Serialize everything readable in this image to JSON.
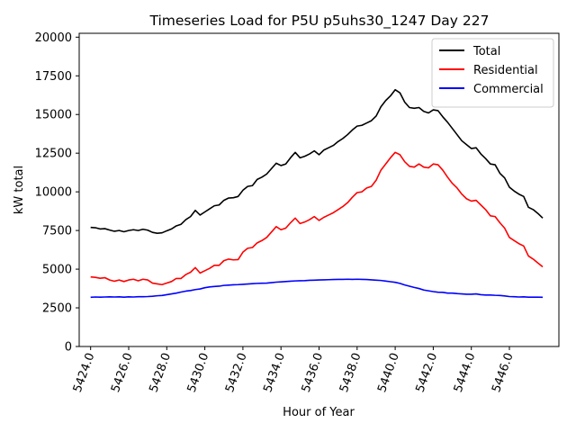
{
  "chart_data": {
    "type": "line",
    "title": "Timeseries Load for P5U p5uhs30_1247  Day 227",
    "xlabel": "Hour of Year",
    "ylabel": "kW total",
    "xlim": [
      5423.4,
      5448.6
    ],
    "ylim": [
      0,
      20250
    ],
    "x_ticks": [
      5424,
      5426,
      5428,
      5430,
      5432,
      5434,
      5436,
      5438,
      5440,
      5442,
      5444,
      5446
    ],
    "x_tick_labels": [
      "5424.0",
      "5426.0",
      "5428.0",
      "5430.0",
      "5432.0",
      "5434.0",
      "5436.0",
      "5438.0",
      "5440.0",
      "5442.0",
      "5444.0",
      "5446.0"
    ],
    "y_ticks": [
      0,
      2500,
      5000,
      7500,
      10000,
      12500,
      15000,
      17500,
      20000
    ],
    "y_tick_labels": [
      "0",
      "2500",
      "5000",
      "7500",
      "10000",
      "12500",
      "15000",
      "17500",
      "20000"
    ],
    "legend_position": "top-right",
    "x_start": 5424.0,
    "x_step": 0.25,
    "series": [
      {
        "name": "Total",
        "color": "#000000",
        "values": [
          7700,
          7680,
          7600,
          7620,
          7530,
          7450,
          7500,
          7420,
          7500,
          7550,
          7500,
          7580,
          7520,
          7380,
          7320,
          7350,
          7480,
          7600,
          7800,
          7900,
          8200,
          8400,
          8800,
          8500,
          8700,
          8900,
          9100,
          9150,
          9450,
          9600,
          9620,
          9700,
          10100,
          10350,
          10400,
          10800,
          10950,
          11150,
          11500,
          11850,
          11700,
          11800,
          12200,
          12550,
          12200,
          12300,
          12450,
          12650,
          12400,
          12700,
          12850,
          13000,
          13250,
          13450,
          13700,
          14000,
          14250,
          14300,
          14450,
          14600,
          14900,
          15500,
          15900,
          16200,
          16600,
          16400,
          15800,
          15450,
          15400,
          15450,
          15200,
          15100,
          15300,
          15250,
          14850,
          14500,
          14100,
          13700,
          13300,
          13050,
          12800,
          12850,
          12450,
          12150,
          11800,
          11750,
          11200,
          10900,
          10300,
          10050,
          9850,
          9700,
          9000,
          8850,
          8600,
          8300
        ]
      },
      {
        "name": "Residential",
        "color": "#ff0000",
        "values": [
          4500,
          4470,
          4410,
          4450,
          4300,
          4220,
          4300,
          4200,
          4300,
          4350,
          4250,
          4350,
          4300,
          4100,
          4050,
          4000,
          4100,
          4200,
          4400,
          4400,
          4650,
          4800,
          5100,
          4750,
          4900,
          5050,
          5250,
          5250,
          5550,
          5650,
          5600,
          5620,
          6100,
          6350,
          6400,
          6700,
          6850,
          7050,
          7400,
          7750,
          7550,
          7650,
          8000,
          8300,
          7950,
          8050,
          8200,
          8400,
          8150,
          8350,
          8500,
          8650,
          8850,
          9050,
          9300,
          9650,
          9950,
          10000,
          10250,
          10350,
          10750,
          11400,
          11800,
          12200,
          12550,
          12400,
          11950,
          11650,
          11600,
          11800,
          11600,
          11550,
          11800,
          11750,
          11400,
          10950,
          10550,
          10250,
          9850,
          9550,
          9400,
          9450,
          9150,
          8850,
          8450,
          8400,
          8000,
          7650,
          7050,
          6850,
          6650,
          6500,
          5850,
          5650,
          5400,
          5150
        ]
      },
      {
        "name": "Commercial",
        "color": "#0000ff",
        "values": [
          3180,
          3200,
          3190,
          3200,
          3210,
          3200,
          3210,
          3190,
          3210,
          3200,
          3220,
          3220,
          3230,
          3250,
          3280,
          3300,
          3350,
          3400,
          3450,
          3520,
          3580,
          3620,
          3680,
          3720,
          3800,
          3850,
          3880,
          3900,
          3950,
          3970,
          3990,
          4000,
          4020,
          4040,
          4060,
          4080,
          4090,
          4100,
          4130,
          4160,
          4180,
          4200,
          4220,
          4240,
          4250,
          4260,
          4280,
          4290,
          4300,
          4310,
          4320,
          4330,
          4340,
          4340,
          4350,
          4340,
          4350,
          4340,
          4330,
          4310,
          4290,
          4270,
          4230,
          4190,
          4150,
          4080,
          3980,
          3900,
          3820,
          3750,
          3650,
          3600,
          3550,
          3510,
          3500,
          3450,
          3450,
          3420,
          3400,
          3380,
          3380,
          3400,
          3350,
          3330,
          3330,
          3310,
          3300,
          3270,
          3230,
          3220,
          3200,
          3210,
          3190,
          3190,
          3190,
          3180
        ]
      }
    ]
  }
}
